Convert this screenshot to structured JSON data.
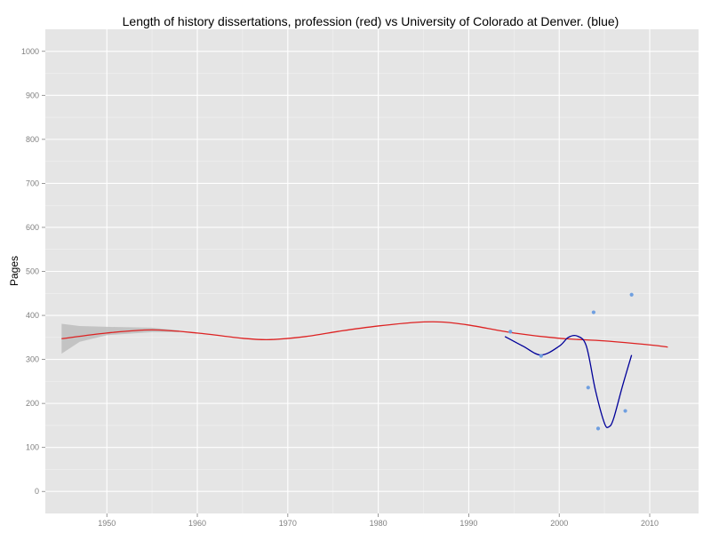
{
  "chart_data": {
    "type": "line",
    "title": "Length of history dissertations, profession (red) vs University of Colorado at Denver. (blue)",
    "xlabel": "",
    "ylabel": "Pages",
    "xlim": [
      1943.2,
      2015.4
    ],
    "ylim": [
      -50,
      1050
    ],
    "xticks": [
      1950,
      1960,
      1970,
      1980,
      1990,
      2000,
      2010
    ],
    "yticks": [
      0,
      100,
      200,
      300,
      400,
      500,
      600,
      700,
      800,
      900,
      1000
    ],
    "xtick_labels": [
      "1950",
      "1960",
      "1970",
      "1980",
      "1990",
      "2000",
      "2010"
    ],
    "ytick_labels": [
      "0",
      "100",
      "200",
      "300",
      "400",
      "500",
      "600",
      "700",
      "800",
      "900",
      "1000"
    ],
    "grid": true,
    "colors": {
      "panel": "#e5e5e5",
      "grid_major": "#ffffff",
      "grid_minor": "#f2f2f2",
      "profession": "#dd2222",
      "ucd": "#000099",
      "points": "#6f9fe0",
      "band": "#bdbdbd"
    },
    "series": [
      {
        "kind": "smooth",
        "color": "#dd2222",
        "x": [
          1945,
          1950,
          1955,
          1960,
          1965,
          1968,
          1972,
          1976,
          1980,
          1984,
          1987,
          1990,
          1995,
          2000,
          2005,
          2010,
          2012
        ],
        "y": [
          347,
          360,
          367,
          360,
          348,
          345,
          352,
          365,
          376,
          384,
          385,
          378,
          360,
          348,
          342,
          333,
          328
        ]
      },
      {
        "kind": "confidence_band",
        "color": "#bdbdbd",
        "x": [
          1945,
          1947,
          1950,
          1955,
          1958
        ],
        "upper": [
          381,
          376,
          374,
          372,
          366
        ],
        "lower": [
          313,
          340,
          355,
          362,
          362
        ]
      },
      {
        "kind": "smooth",
        "color": "#000099",
        "x": [
          1994,
          1996,
          1998,
          2000,
          2001,
          2002,
          2003,
          2004,
          2005,
          2005.5,
          2006,
          2007,
          2008
        ],
        "y": [
          352,
          330,
          310,
          330,
          350,
          353,
          330,
          230,
          155,
          147,
          165,
          240,
          310
        ]
      },
      {
        "kind": "scatter",
        "color": "#6f9fe0",
        "x": [
          1994.6,
          1998,
          2003.2,
          2003.8,
          2004.3,
          2007.3,
          2008
        ],
        "y": [
          363,
          308,
          236,
          407,
          143,
          183,
          447
        ]
      }
    ]
  }
}
